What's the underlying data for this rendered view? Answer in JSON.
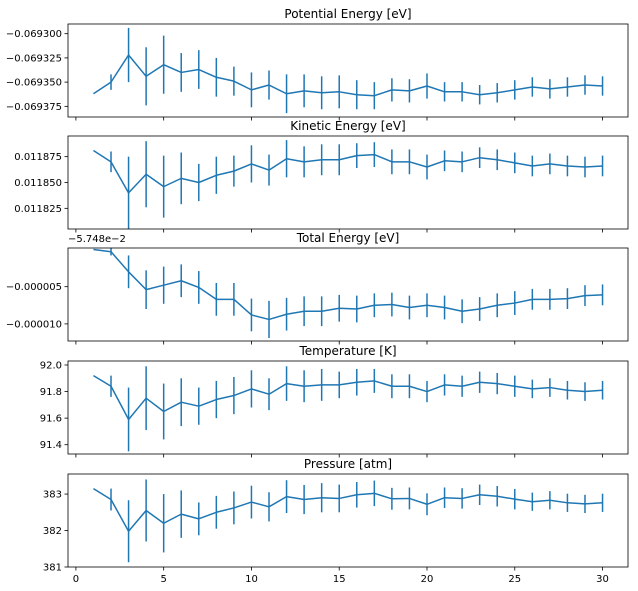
{
  "figure": {
    "background": "#ffffff",
    "line_color": "#1f77b4",
    "x_ticks": [
      0,
      5,
      10,
      15,
      20,
      25,
      30
    ],
    "x_tick_labels": [
      "0",
      "5",
      "10",
      "15",
      "20",
      "25",
      "30"
    ]
  },
  "chart_data": [
    {
      "type": "line",
      "title": "Potential Energy [eV]",
      "x": [
        1,
        2,
        3,
        4,
        5,
        6,
        7,
        8,
        9,
        10,
        11,
        12,
        13,
        14,
        15,
        16,
        17,
        18,
        19,
        20,
        21,
        22,
        23,
        24,
        25,
        26,
        27,
        28,
        29,
        30
      ],
      "series": [
        {
          "values": [
            -0.069362,
            -0.06935,
            -0.069322,
            -0.069344,
            -0.069332,
            -0.06934,
            -0.069337,
            -0.069345,
            -0.069349,
            -0.069358,
            -0.069353,
            -0.069362,
            -0.069359,
            -0.069361,
            -0.06936,
            -0.069363,
            -0.069364,
            -0.069358,
            -0.069359,
            -0.069354,
            -0.06936,
            -0.06936,
            -0.069363,
            -0.069361,
            -0.069358,
            -0.069355,
            -0.069357,
            -0.069355,
            -0.069353,
            -0.069354
          ],
          "errors": [
            0,
            8e-06,
            2.8e-05,
            3e-05,
            3e-05,
            2e-05,
            2e-05,
            2e-05,
            1.5e-05,
            1.8e-05,
            1.5e-05,
            2e-05,
            1.7e-05,
            1.7e-05,
            1.7e-05,
            1.5e-05,
            1.4e-05,
            1.2e-05,
            1.2e-05,
            1.3e-05,
            1e-05,
            1e-05,
            1e-05,
            1e-05,
            1e-05,
            1e-05,
            1e-05,
            1e-05,
            1e-05,
            1e-05
          ]
        }
      ],
      "ylim": [
        -0.069386,
        -0.06929
      ],
      "y_ticks": [
        -0.0693,
        -0.069325,
        -0.06935,
        -0.069375
      ],
      "y_tick_labels": [
        "−0.069300",
        "−0.069325",
        "−0.069350",
        "−0.069375"
      ],
      "offset_text": ""
    },
    {
      "type": "line",
      "title": "Kinetic Energy [eV]",
      "x": [
        1,
        2,
        3,
        4,
        5,
        6,
        7,
        8,
        9,
        10,
        11,
        12,
        13,
        14,
        15,
        16,
        17,
        18,
        19,
        20,
        21,
        22,
        23,
        24,
        25,
        26,
        27,
        28,
        29,
        30
      ],
      "series": [
        {
          "values": [
            0.011881,
            0.01187,
            0.01184,
            0.011858,
            0.011846,
            0.011854,
            0.01185,
            0.011857,
            0.011861,
            0.011868,
            0.011862,
            0.011873,
            0.01187,
            0.011872,
            0.011872,
            0.011876,
            0.011877,
            0.01187,
            0.01187,
            0.011865,
            0.011871,
            0.01187,
            0.011874,
            0.011872,
            0.011869,
            0.011866,
            0.011868,
            0.011866,
            0.011865,
            0.011866
          ],
          "errors": [
            0,
            1e-05,
            3.5e-05,
            3.2e-05,
            3e-05,
            2.5e-05,
            1.8e-05,
            1.8e-05,
            1.5e-05,
            1.8e-05,
            1.5e-05,
            1.8e-05,
            1.5e-05,
            1.5e-05,
            1.5e-05,
            1.2e-05,
            1.2e-05,
            1.2e-05,
            1.2e-05,
            1.2e-05,
            1e-05,
            1e-05,
            1e-05,
            1e-05,
            1e-05,
            1e-05,
            1e-05,
            1e-05,
            1e-05,
            1e-05
          ]
        }
      ],
      "ylim": [
        0.011805,
        0.011895
      ],
      "y_ticks": [
        0.011825,
        0.01185,
        0.011875
      ],
      "y_tick_labels": [
        "0.011825",
        "0.011850",
        "0.011875"
      ],
      "offset_text": ""
    },
    {
      "type": "line",
      "title": "Total Energy [eV]",
      "x": [
        1,
        2,
        3,
        4,
        5,
        6,
        7,
        8,
        9,
        10,
        11,
        12,
        13,
        14,
        15,
        16,
        17,
        18,
        19,
        20,
        21,
        22,
        23,
        24,
        25,
        26,
        27,
        28,
        29,
        30
      ],
      "series": [
        {
          "values": [
            0.0,
            -3e-07,
            -3e-06,
            -5.4e-06,
            -4.8e-06,
            -4.2e-06,
            -5.1e-06,
            -6.7e-06,
            -6.7e-06,
            -8.8e-06,
            -9.4e-06,
            -8.7e-06,
            -8.3e-06,
            -8.3e-06,
            -7.9e-06,
            -8e-06,
            -7.5e-06,
            -7.4e-06,
            -7.8e-06,
            -7.5e-06,
            -7.8e-06,
            -8.3e-06,
            -8e-06,
            -7.5e-06,
            -7.2e-06,
            -6.7e-06,
            -6.7e-06,
            -6.6e-06,
            -6.2e-06,
            -6.1e-06
          ],
          "errors": [
            0,
            5e-07,
            2.2e-06,
            2.6e-06,
            2.5e-06,
            2.2e-06,
            2.2e-06,
            2.2e-06,
            2.2e-06,
            2.2e-06,
            2.5e-06,
            2.2e-06,
            2e-06,
            2e-06,
            1.8e-06,
            1.8e-06,
            1.6e-06,
            1.6e-06,
            1.6e-06,
            1.6e-06,
            1.6e-06,
            1.6e-06,
            1.6e-06,
            1.6e-06,
            1.6e-06,
            1.4e-06,
            1.4e-06,
            1.4e-06,
            1.4e-06,
            1.4e-06
          ]
        }
      ],
      "ylim": [
        -1.23e-05,
        2e-07
      ],
      "y_ticks": [
        -5e-06,
        -1e-05
      ],
      "y_tick_labels": [
        "−0.000005",
        "−0.000010"
      ],
      "offset_text": "−5.748e−2"
    },
    {
      "type": "line",
      "title": "Temperature [K]",
      "x": [
        1,
        2,
        3,
        4,
        5,
        6,
        7,
        8,
        9,
        10,
        11,
        12,
        13,
        14,
        15,
        16,
        17,
        18,
        19,
        20,
        21,
        22,
        23,
        24,
        25,
        26,
        27,
        28,
        29,
        30
      ],
      "series": [
        {
          "values": [
            91.92,
            91.84,
            91.59,
            91.75,
            91.65,
            91.72,
            91.69,
            91.74,
            91.77,
            91.82,
            91.78,
            91.86,
            91.84,
            91.85,
            91.85,
            91.87,
            91.88,
            91.84,
            91.84,
            91.8,
            91.85,
            91.84,
            91.87,
            91.86,
            91.84,
            91.82,
            91.83,
            91.81,
            91.8,
            91.81
          ],
          "errors": [
            0,
            0.08,
            0.24,
            0.24,
            0.21,
            0.18,
            0.14,
            0.14,
            0.14,
            0.14,
            0.12,
            0.13,
            0.12,
            0.12,
            0.1,
            0.1,
            0.09,
            0.09,
            0.09,
            0.08,
            0.08,
            0.08,
            0.08,
            0.08,
            0.08,
            0.07,
            0.07,
            0.07,
            0.07,
            0.07
          ]
        }
      ],
      "ylim": [
        91.33,
        92.03
      ],
      "y_ticks": [
        91.4,
        91.6,
        91.8,
        92.0
      ],
      "y_tick_labels": [
        "91.4",
        "91.6",
        "91.8",
        "92.0"
      ],
      "offset_text": ""
    },
    {
      "type": "line",
      "title": "Pressure [atm]",
      "x": [
        1,
        2,
        3,
        4,
        5,
        6,
        7,
        8,
        9,
        10,
        11,
        12,
        13,
        14,
        15,
        16,
        17,
        18,
        19,
        20,
        21,
        22,
        23,
        24,
        25,
        26,
        27,
        28,
        29,
        30
      ],
      "series": [
        {
          "values": [
            383.15,
            382.85,
            381.98,
            382.55,
            382.2,
            382.45,
            382.32,
            382.5,
            382.62,
            382.78,
            382.65,
            382.93,
            382.85,
            382.9,
            382.88,
            382.98,
            383.02,
            382.87,
            382.88,
            382.72,
            382.9,
            382.88,
            382.98,
            382.94,
            382.86,
            382.79,
            382.83,
            382.76,
            382.73,
            382.76
          ],
          "errors": [
            0,
            0.3,
            0.85,
            0.85,
            0.8,
            0.65,
            0.45,
            0.45,
            0.45,
            0.45,
            0.4,
            0.45,
            0.4,
            0.4,
            0.38,
            0.35,
            0.35,
            0.3,
            0.3,
            0.3,
            0.28,
            0.28,
            0.28,
            0.28,
            0.28,
            0.25,
            0.25,
            0.25,
            0.25,
            0.25
          ]
        }
      ],
      "ylim": [
        381.0,
        383.55
      ],
      "y_ticks": [
        381,
        382,
        383
      ],
      "y_tick_labels": [
        "381",
        "382",
        "383"
      ],
      "offset_text": ""
    }
  ]
}
